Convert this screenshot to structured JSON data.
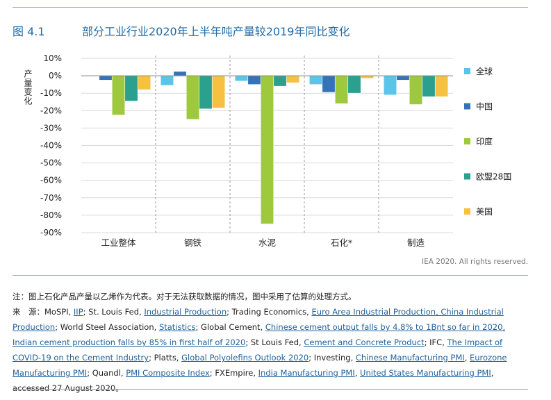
{
  "figure": {
    "number": "图 4.1",
    "title": "部分工业行业2020年上半年吨产量较2019年同比变化"
  },
  "chart_data": {
    "type": "bar",
    "ylabel": "产量变化",
    "xlabel": "",
    "ylim": [
      -90,
      10
    ],
    "yticks": [
      10,
      0,
      -10,
      -20,
      -30,
      -40,
      -50,
      -60,
      -70,
      -80,
      -90
    ],
    "ytick_labels": [
      "10%",
      "0%",
      "-10%",
      "-20%",
      "-30%",
      "-40%",
      "-50%",
      "-60%",
      "-70%",
      "-80%",
      "-90%"
    ],
    "categories": [
      "工业整体",
      "钢铁",
      "水泥",
      "石化*",
      "制造"
    ],
    "legend_position": "right",
    "grid": "horizontal",
    "series": [
      {
        "name": "全球",
        "color": "#5bc4e8",
        "values": [
          0,
          -5.5,
          -3,
          -5,
          -11
        ]
      },
      {
        "name": "中国",
        "color": "#3573b9",
        "values": [
          -2.5,
          2.5,
          -5,
          -9.5,
          -2.5
        ]
      },
      {
        "name": "印度",
        "color": "#9ec93c",
        "values": [
          -22.5,
          -25,
          -85,
          -16,
          -16.5
        ]
      },
      {
        "name": "欧盟28国",
        "color": "#2ba08f",
        "values": [
          -14.5,
          -19,
          -6,
          -10,
          -12
        ]
      },
      {
        "name": "美国",
        "color": "#f6c043",
        "values": [
          -8,
          -18.5,
          -4,
          -1.5,
          -12
        ]
      }
    ]
  },
  "credit": "IEA 2020. All rights reserved.",
  "note": "注：图上石化产品产量以乙烯作为代表。对于无法获取数据的情况，图中采用了估算的处理方式。",
  "source": {
    "label": "来　源：",
    "segments": [
      {
        "text": "MoSPI, ",
        "link": false
      },
      {
        "text": "IIP",
        "link": true
      },
      {
        "text": "; St. Louis Fed, ",
        "link": false
      },
      {
        "text": "Industrial Production",
        "link": true
      },
      {
        "text": "; Trading Economics, ",
        "link": false
      },
      {
        "text": "Euro Area Industrial Production, China Industrial Production",
        "link": true
      },
      {
        "text": "; World Steel Association, ",
        "link": false
      },
      {
        "text": "Statistics",
        "link": true
      },
      {
        "text": "; Global Cement, ",
        "link": false
      },
      {
        "text": "Chinese cement output falls by 4.8% to 1Bnt so far in 2020, Indian cement production falls by 85% in first half of 2020",
        "link": true
      },
      {
        "text": "; St Louis Fed, ",
        "link": false
      },
      {
        "text": "Cement and Concrete Product",
        "link": true
      },
      {
        "text": "; IFC, ",
        "link": false
      },
      {
        "text": "The Impact of COVID-19 on the Cement Industry",
        "link": true
      },
      {
        "text": "; Platts, ",
        "link": false
      },
      {
        "text": "Global Polyolefins Outlook 2020",
        "link": true
      },
      {
        "text": "; Investing, ",
        "link": false
      },
      {
        "text": "Chinese Manufacturing PMI",
        "link": true
      },
      {
        "text": ", ",
        "link": false
      },
      {
        "text": "Eurozone Manufacturing PMI",
        "link": true
      },
      {
        "text": "; Quandl, ",
        "link": false
      },
      {
        "text": "PMI Composite Index",
        "link": true
      },
      {
        "text": "; FXEmpire, ",
        "link": false
      },
      {
        "text": "India Manufacturing PMI",
        "link": true
      },
      {
        "text": ", ",
        "link": false
      },
      {
        "text": "United States Manufacturing PMI",
        "link": true
      },
      {
        "text": ", accessed 27 August 2020。",
        "link": false
      }
    ]
  }
}
